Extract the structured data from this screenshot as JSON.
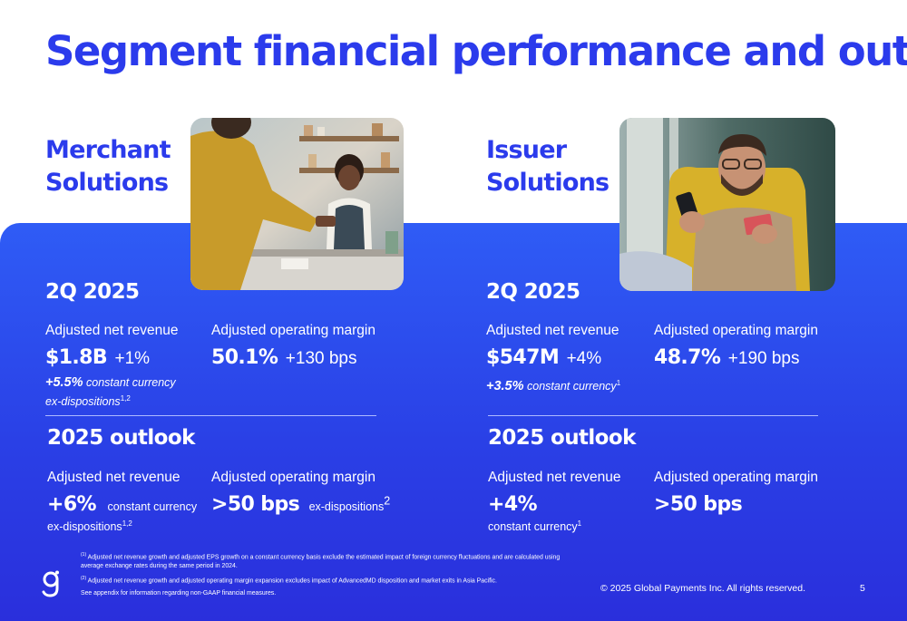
{
  "title": "Segment financial performance and outlook",
  "merchant": {
    "name_line1": "Merchant",
    "name_line2": "Solutions",
    "period": "2Q 2025",
    "revenue_label": "Adjusted net revenue",
    "revenue_value": "$1.8B",
    "revenue_growth": "+1%",
    "cc_growth": "+5.5%",
    "cc_text": "constant currency",
    "cc_line2": "ex-dispositions",
    "cc_sup": "1,2",
    "margin_label": "Adjusted operating margin",
    "margin_value": "50.1%",
    "margin_change": "+130 bps",
    "outlook_title": "2025 outlook",
    "outlook_revenue_label": "Adjusted net revenue",
    "outlook_revenue_value": "+6%",
    "outlook_revenue_note": "constant currency",
    "outlook_revenue_note2": "ex-dispositions",
    "outlook_revenue_sup": "1,2",
    "outlook_margin_label": "Adjusted operating margin",
    "outlook_margin_value": ">50 bps",
    "outlook_margin_note": "ex-dispositions",
    "outlook_margin_sup": "2"
  },
  "issuer": {
    "name_line1": "Issuer",
    "name_line2": "Solutions",
    "period": "2Q 2025",
    "revenue_label": "Adjusted net revenue",
    "revenue_value": "$547M",
    "revenue_growth": "+4%",
    "cc_growth": "+3.5%",
    "cc_text": "constant currency",
    "cc_sup": "1",
    "margin_label": "Adjusted operating margin",
    "margin_value": "48.7%",
    "margin_change": "+190 bps",
    "outlook_title": "2025 outlook",
    "outlook_revenue_label": "Adjusted net revenue",
    "outlook_revenue_value": "+4%",
    "outlook_revenue_note": "constant currency",
    "outlook_revenue_sup": "1",
    "outlook_margin_label": "Adjusted operating margin",
    "outlook_margin_value": ">50 bps"
  },
  "footnotes": {
    "fn1_marker": "(1)",
    "fn1_line1": "Adjusted net revenue growth and adjusted EPS growth on a constant currency basis exclude the estimated impact of foreign currency fluctuations and are calculated using",
    "fn1_line2": "average exchange rates during the same period in 2024.",
    "fn2_marker": "(2)",
    "fn2_line1": "Adjusted net revenue growth and adjusted operating margin expansion excludes impact of AdvancedMD disposition and market exits in Asia Pacific.",
    "appendix": "See appendix for information regarding non-GAAP financial measures."
  },
  "copyright": "© 2025 Global Payments Inc. All rights reserved.",
  "page_number": "5",
  "colors": {
    "brand_blue": "#2b3bec",
    "panel_top": "#2f5cf6",
    "panel_bottom": "#2a2fdc"
  }
}
